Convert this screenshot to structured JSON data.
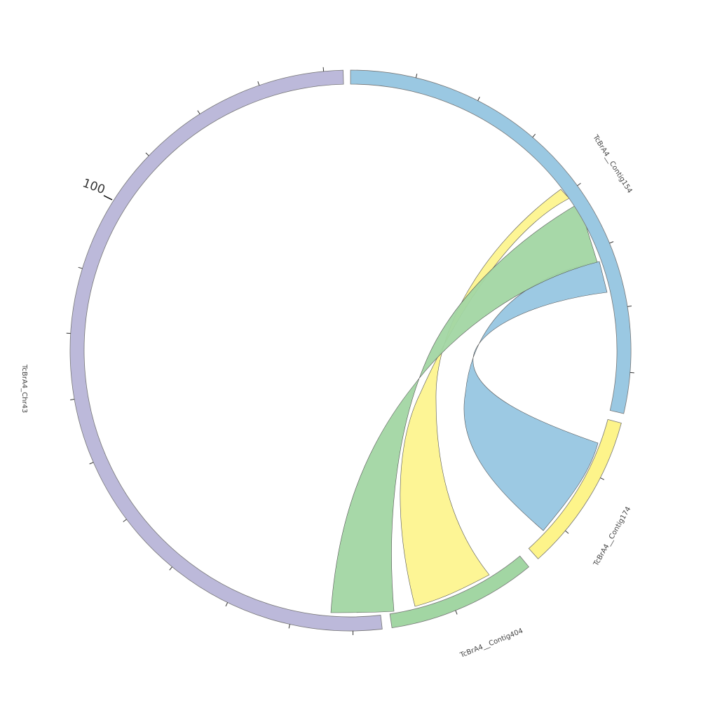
{
  "colors": {
    "Chr43": "#bcb9da",
    "Contig154": "#9ac8e2",
    "Contig174": "#fdf48a",
    "Contig404": "#a2d6a3",
    "stroke": "#777777"
  },
  "segments": [
    {
      "id": "Chr43",
      "label": "TcBrA4_Chr43",
      "color_key": "Chr43"
    },
    {
      "id": "Contig154",
      "label": "TcBrA4__Contig154",
      "color_key": "Contig154"
    },
    {
      "id": "Contig174",
      "label": "TcBrA4__Contig174",
      "color_key": "Contig174"
    },
    {
      "id": "Contig404",
      "label": "TcBrA4__Contig404",
      "color_key": "Contig404"
    }
  ],
  "tick_labels": [
    {
      "segment": "Chr43",
      "text": "100"
    }
  ],
  "links": [
    {
      "from": "Contig154",
      "to": "Contig174",
      "color_key": "Contig154"
    },
    {
      "from": "Contig154",
      "to": "Contig404",
      "color_key": "Contig174"
    },
    {
      "from": "Contig154",
      "to": "Chr43",
      "color_key": "Contig404"
    }
  ]
}
